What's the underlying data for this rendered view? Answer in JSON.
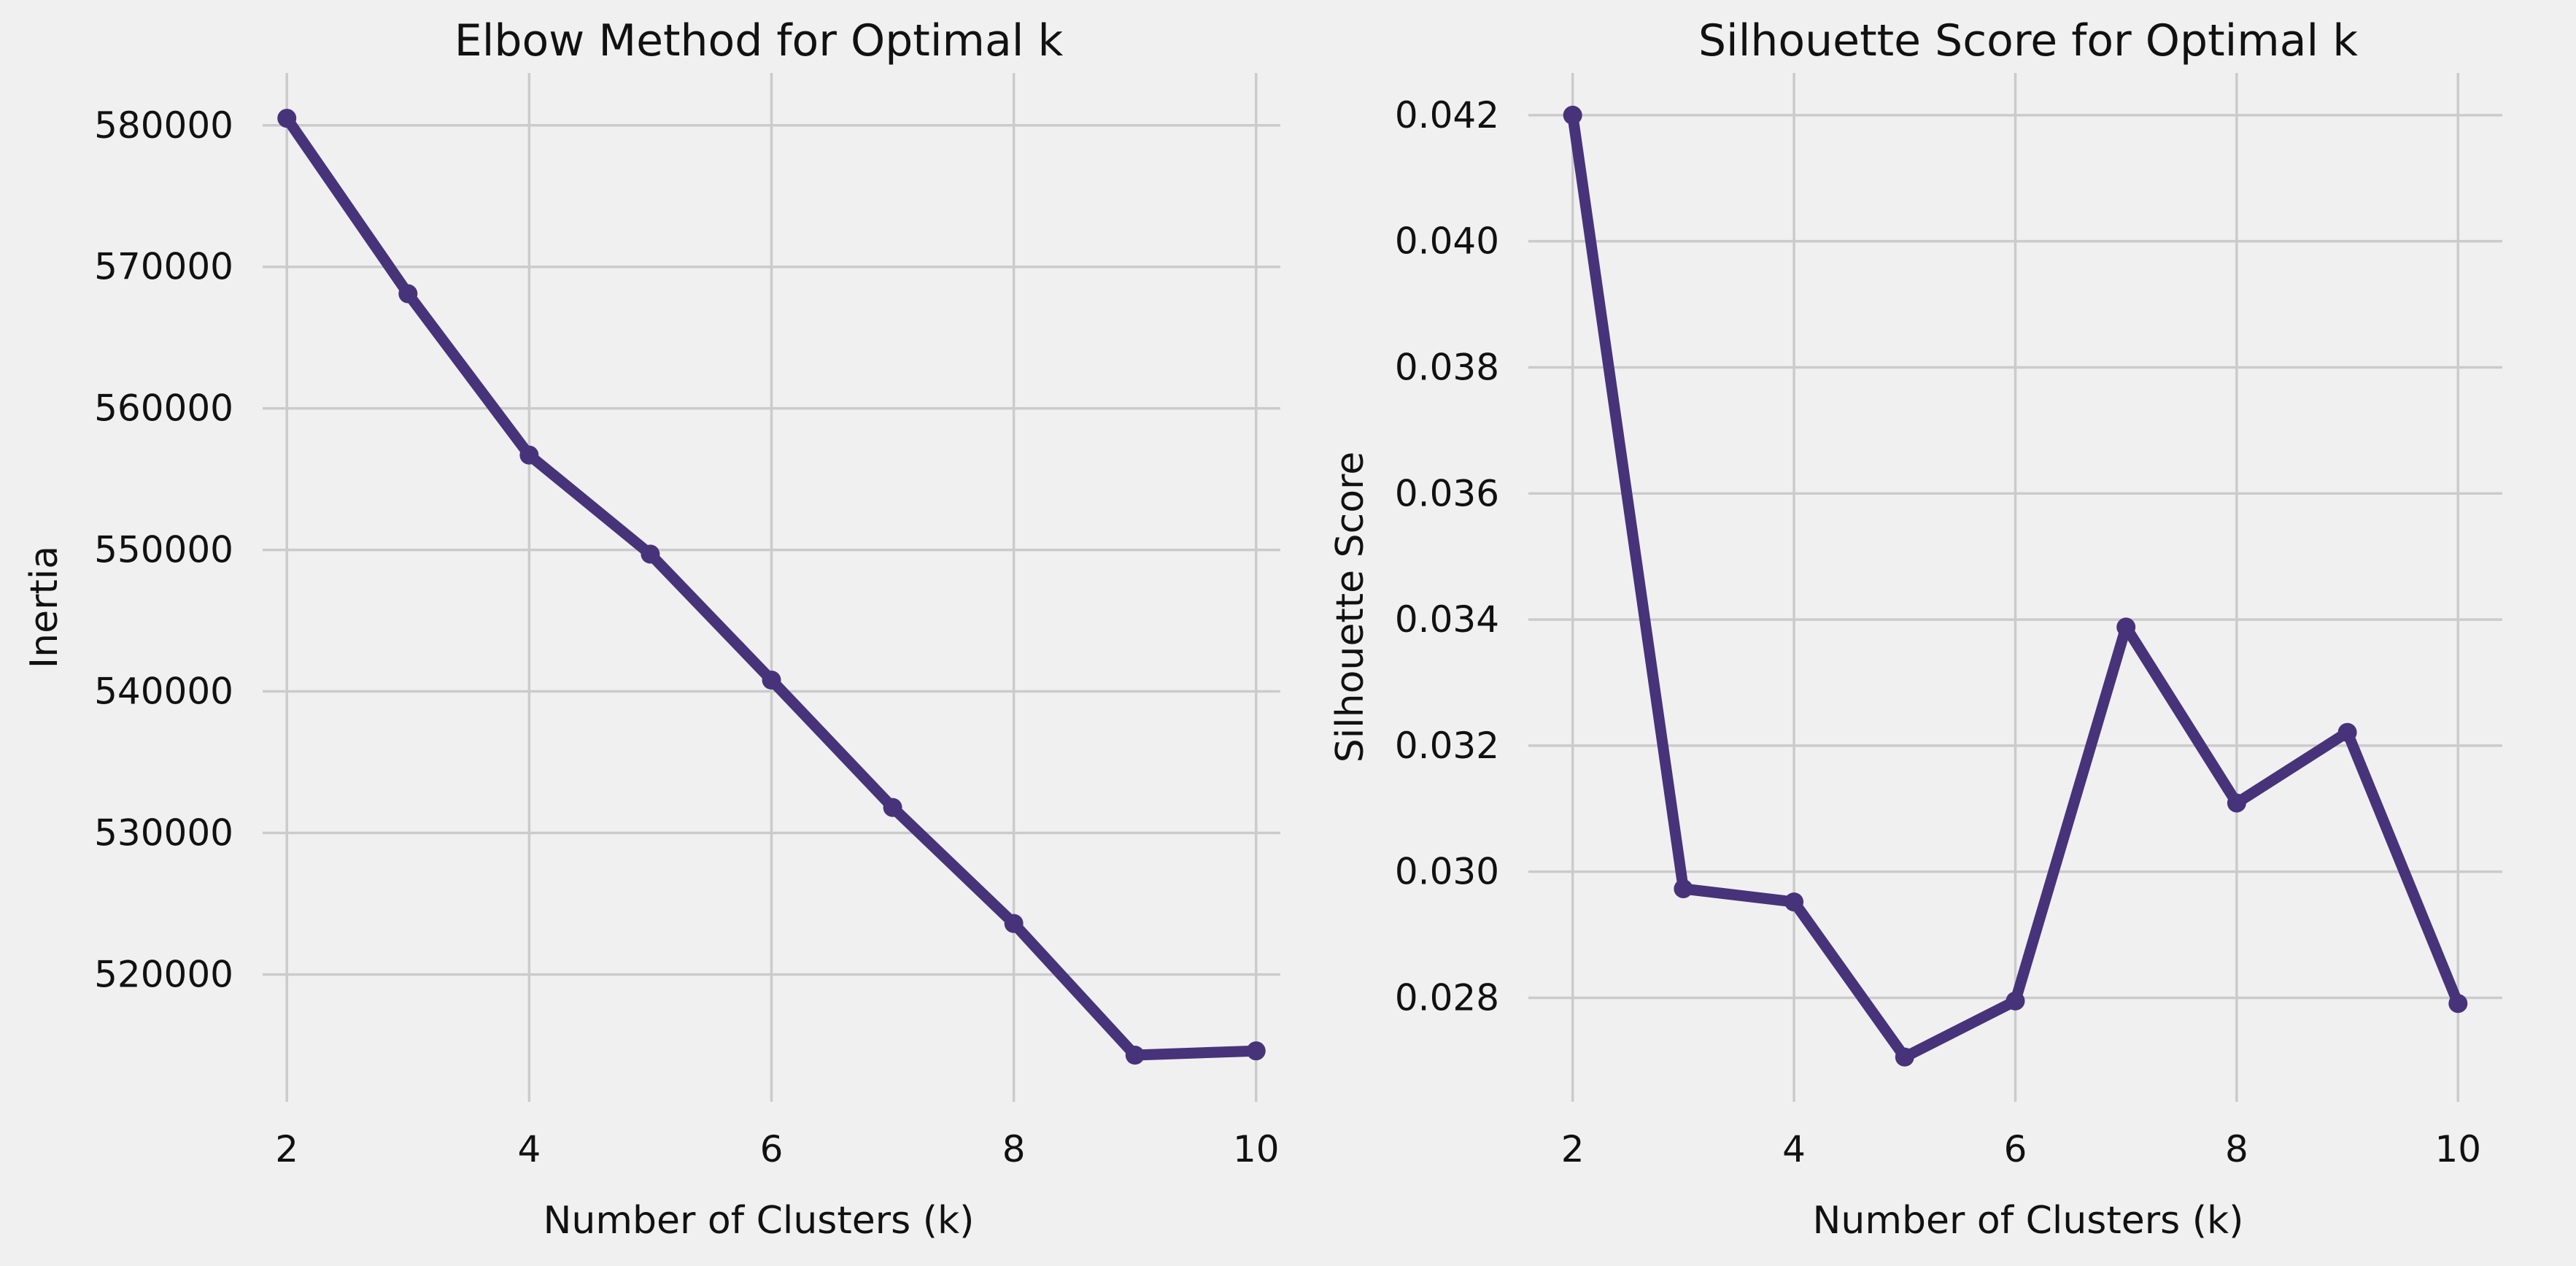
{
  "colors": {
    "background": "#f0f0f0",
    "grid": "#cbcbcb",
    "series": "#47337a"
  },
  "chart_data": [
    {
      "type": "line",
      "title": "Elbow Method for Optimal k",
      "xlabel": "Number of Clusters (k)",
      "ylabel": "Inertia",
      "x": [
        2,
        3,
        4,
        5,
        6,
        7,
        8,
        9,
        10
      ],
      "series": [
        {
          "values": [
            580500,
            568100,
            556700,
            549700,
            540800,
            531800,
            523600,
            514300,
            514600
          ]
        }
      ],
      "xlim": [
        1.8,
        10.2
      ],
      "ylim": [
        511000,
        583700
      ],
      "xticks": [
        2,
        4,
        6,
        8,
        10
      ],
      "yticks": [
        520000,
        530000,
        540000,
        550000,
        560000,
        570000,
        580000
      ],
      "grid": true,
      "marker": "circle"
    },
    {
      "type": "line",
      "title": "Silhouette Score for Optimal k",
      "xlabel": "Number of Clusters (k)",
      "ylabel": "Silhouette Score",
      "x": [
        2,
        3,
        4,
        5,
        6,
        7,
        8,
        9,
        10
      ],
      "series": [
        {
          "values": [
            0.042,
            0.02973,
            0.02952,
            0.02706,
            0.02795,
            0.03388,
            0.03109,
            0.03221,
            0.02791
          ]
        }
      ],
      "xlim": [
        1.6,
        10.4
      ],
      "ylim": [
        0.02635,
        0.04267
      ],
      "xticks": [
        2,
        4,
        6,
        8,
        10
      ],
      "yticks": [
        0.028,
        0.03,
        0.032,
        0.034,
        0.036,
        0.038,
        0.04,
        0.042
      ],
      "ytick_decimals": 3,
      "grid": true,
      "marker": "circle"
    }
  ]
}
